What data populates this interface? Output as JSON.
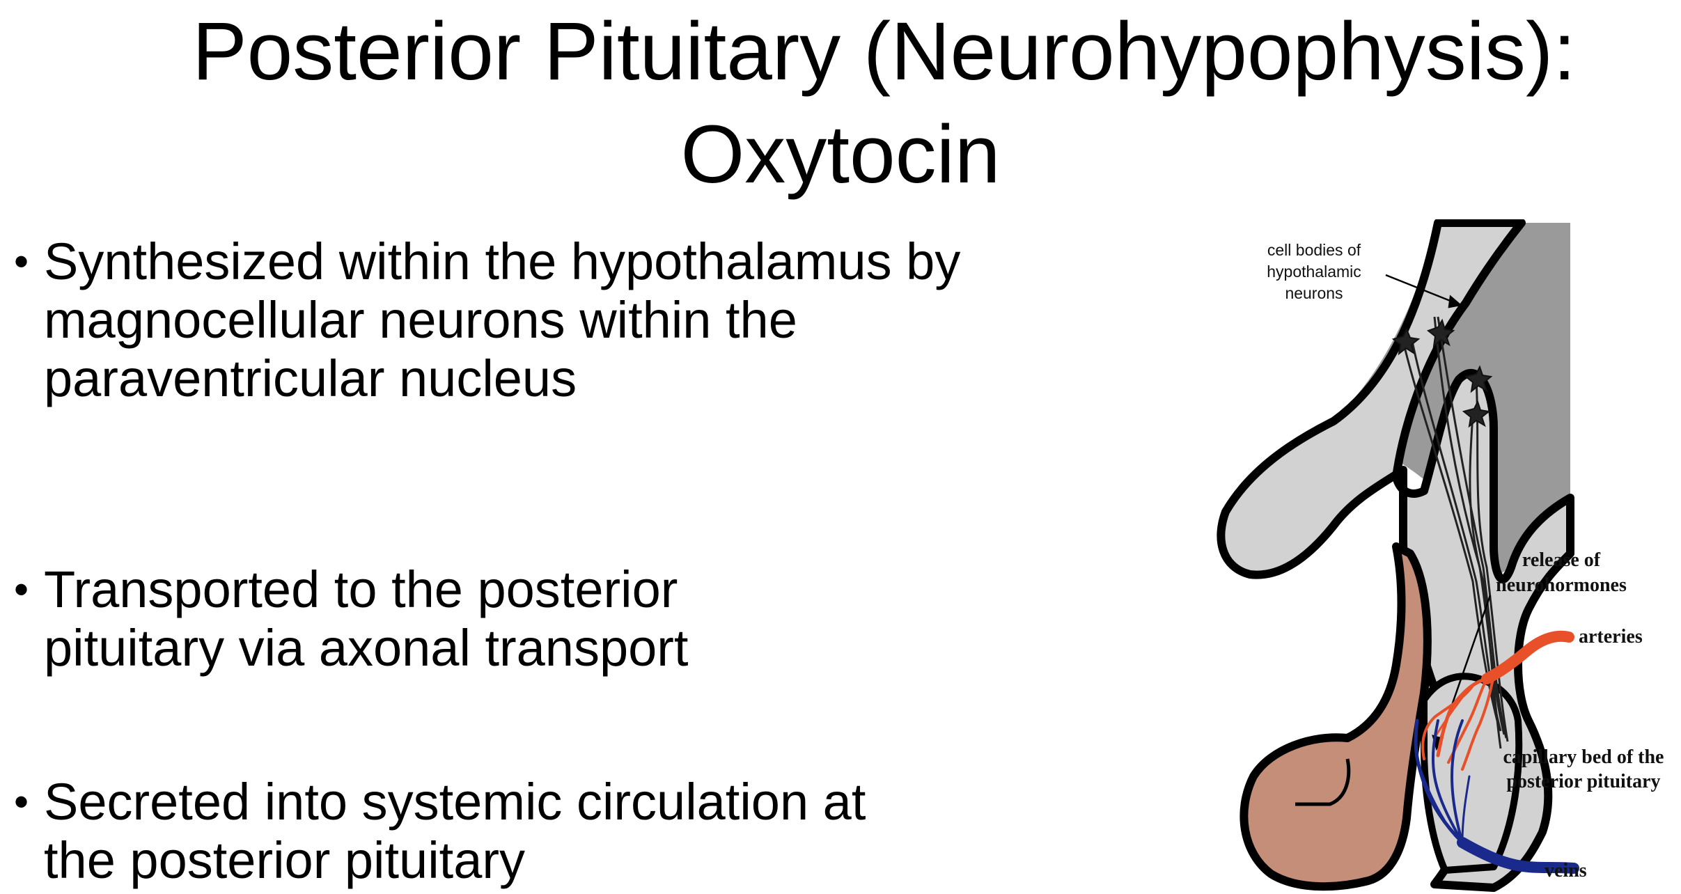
{
  "slide": {
    "title_line1": "Posterior Pituitary (Neurohypophysis):",
    "title_line2": "Oxytocin",
    "bullet_glyph": "•",
    "bullets": [
      {
        "text": "Synthesized within the hypothalamus by magnocellular neurons within the paraventricular nucleus"
      },
      {
        "text": "Transported to the posterior pituitary via axonal transport"
      },
      {
        "text": "Secreted into systemic circulation at the posterior pituitary"
      }
    ]
  },
  "diagram": {
    "labels": {
      "cell_bodies_line1": "cell bodies of",
      "cell_bodies_line2": "hypothalamic",
      "cell_bodies_line3": "neurons",
      "release_line1": "release of",
      "release_line2": "neurohormones",
      "arteries": "arteries",
      "capillary_line1": "capillary bed of the",
      "capillary_line2": "posterior pituitary",
      "veins": "veins"
    },
    "colors": {
      "hypothalamus_dark_gray": "#9a9a9a",
      "stalk_light_gray": "#d2d2d2",
      "anterior_lobe": "#c48e78",
      "arteries": "#e8502a",
      "veins": "#1a2a8c",
      "outline": "#000000"
    }
  }
}
